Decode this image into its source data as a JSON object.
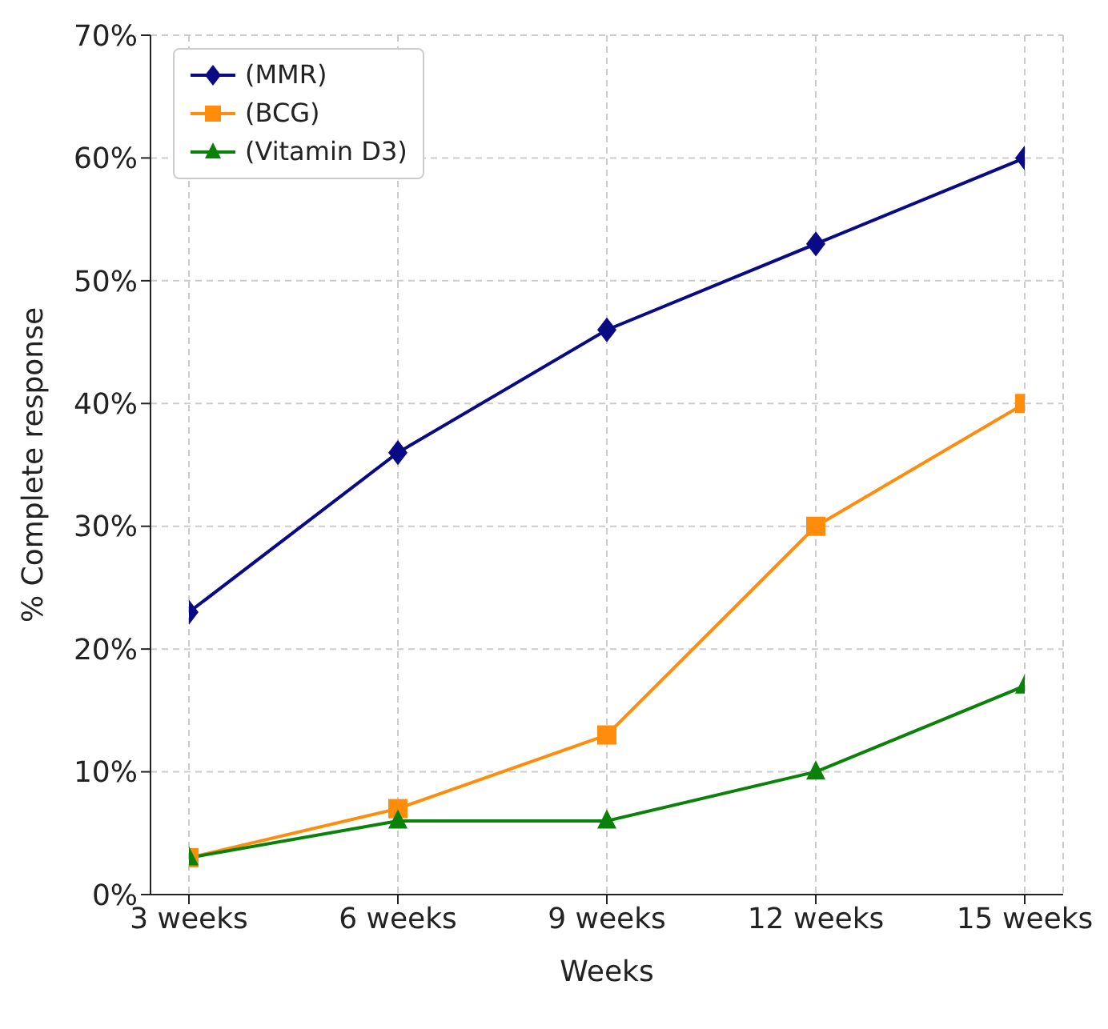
{
  "chart_data": {
    "type": "line",
    "xlabel": "Weeks",
    "ylabel": "% Complete response",
    "categories": [
      "3 weeks",
      "6 weeks",
      "9 weeks",
      "12 weeks",
      "15 weeks"
    ],
    "series": [
      {
        "name": "(MMR)",
        "color": "#0a0a85",
        "marker": "diamond",
        "values": [
          23,
          36,
          46,
          53,
          60
        ]
      },
      {
        "name": "(BCG)",
        "color": "#ff8c0a",
        "marker": "square",
        "values": [
          3,
          7,
          13,
          30,
          40
        ]
      },
      {
        "name": "(Vitamin D3)",
        "color": "#0a820a",
        "marker": "triangle",
        "values": [
          3,
          6,
          6,
          10,
          17
        ]
      }
    ],
    "ylim": [
      0,
      70
    ],
    "yticks": [
      {
        "value": 0,
        "label": "0%"
      },
      {
        "value": 10,
        "label": "10%"
      },
      {
        "value": 20,
        "label": "20%"
      },
      {
        "value": 30,
        "label": "30%"
      },
      {
        "value": 40,
        "label": "40%"
      },
      {
        "value": 50,
        "label": "50%"
      },
      {
        "value": 60,
        "label": "60%"
      },
      {
        "value": 70,
        "label": "70%"
      }
    ],
    "grid": true,
    "legend": "top left",
    "line_style": "solid"
  }
}
